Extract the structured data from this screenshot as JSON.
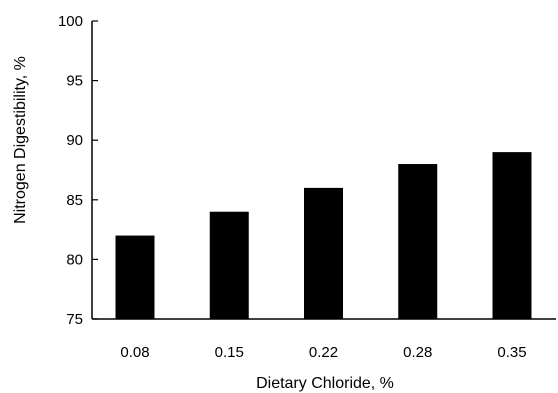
{
  "chart_data": {
    "type": "bar",
    "title": "",
    "xlabel": "Dietary Chloride, %",
    "ylabel": "Nitrogen Digestibility, %",
    "categories": [
      "0.08",
      "0.15",
      "0.22",
      "0.28",
      "0.35"
    ],
    "values": [
      82,
      84,
      86,
      88,
      89
    ],
    "ylim": [
      75,
      100
    ],
    "yticks": [
      75,
      80,
      85,
      90,
      95,
      100
    ],
    "ytick_labels": [
      "75",
      "80",
      "85",
      "90",
      "95",
      "100"
    ],
    "grid": false,
    "legend": "none",
    "bar_color": "#000000"
  }
}
